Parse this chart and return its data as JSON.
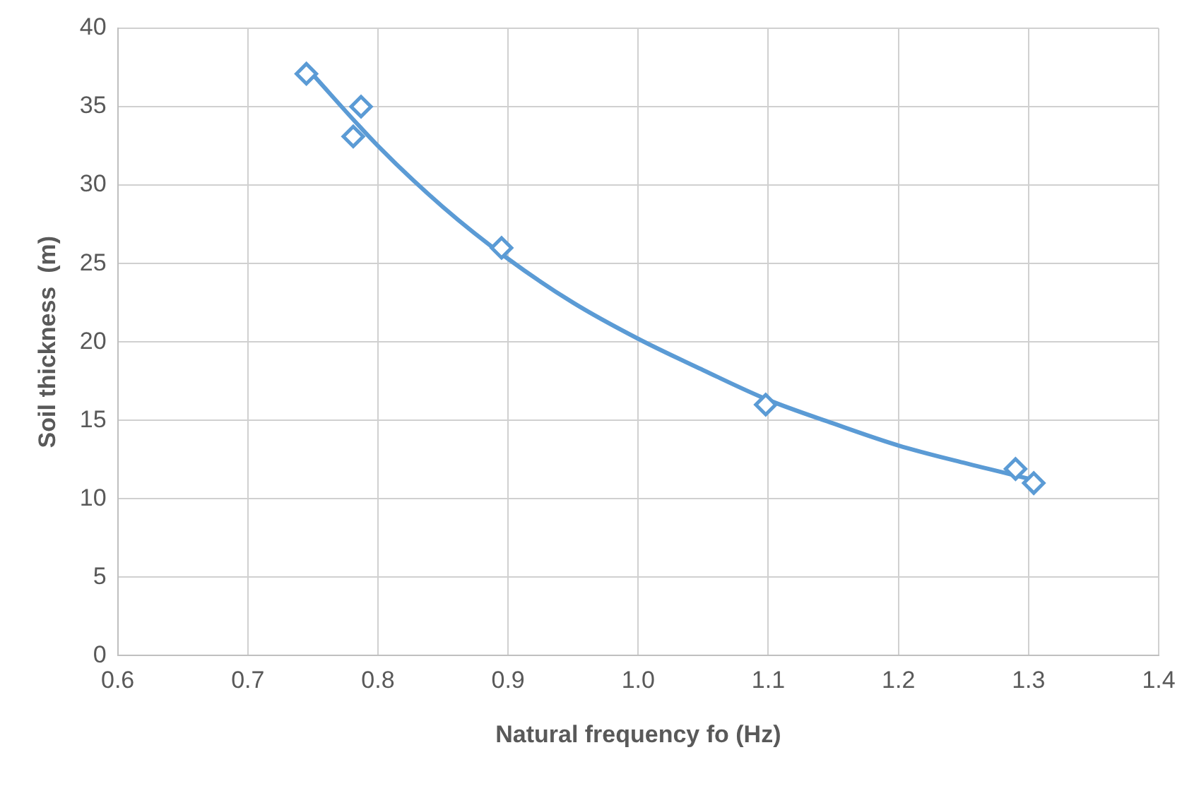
{
  "chart_data": {
    "type": "scatter",
    "xlabel": "Natural frequency fo (Hz)",
    "ylabel": "Soil thickness  (m)",
    "xlim": [
      0.6,
      1.4
    ],
    "xticks": [
      0.6,
      0.7,
      0.8,
      0.9,
      {
        "value": 1,
        "label": "1.0"
      },
      1.1,
      1.2,
      1.3,
      1.4
    ],
    "ylim": [
      0,
      40
    ],
    "yticks": [
      0,
      5,
      10,
      15,
      20,
      25,
      30,
      35,
      40
    ],
    "grid": true,
    "series": [
      {
        "marker": "diamond",
        "color": "#5b9bd5",
        "x": [
          0.745,
          0.787,
          0.781,
          0.895,
          1.098,
          1.29,
          1.304
        ],
        "values": [
          37.1,
          35.0,
          33.1,
          26.0,
          16.0,
          11.9,
          11.0
        ]
      },
      {
        "type": "line",
        "marker": "none",
        "color": "#5b9bd5",
        "x": [
          0.745,
          0.8,
          0.85,
          0.9,
          0.95,
          1.0,
          1.05,
          1.1,
          1.15,
          1.2,
          1.25,
          1.304
        ],
        "values": [
          37.5,
          32.5,
          28.6,
          25.3,
          22.5,
          20.2,
          18.2,
          16.3,
          14.8,
          13.4,
          12.3,
          11.2
        ]
      }
    ]
  }
}
